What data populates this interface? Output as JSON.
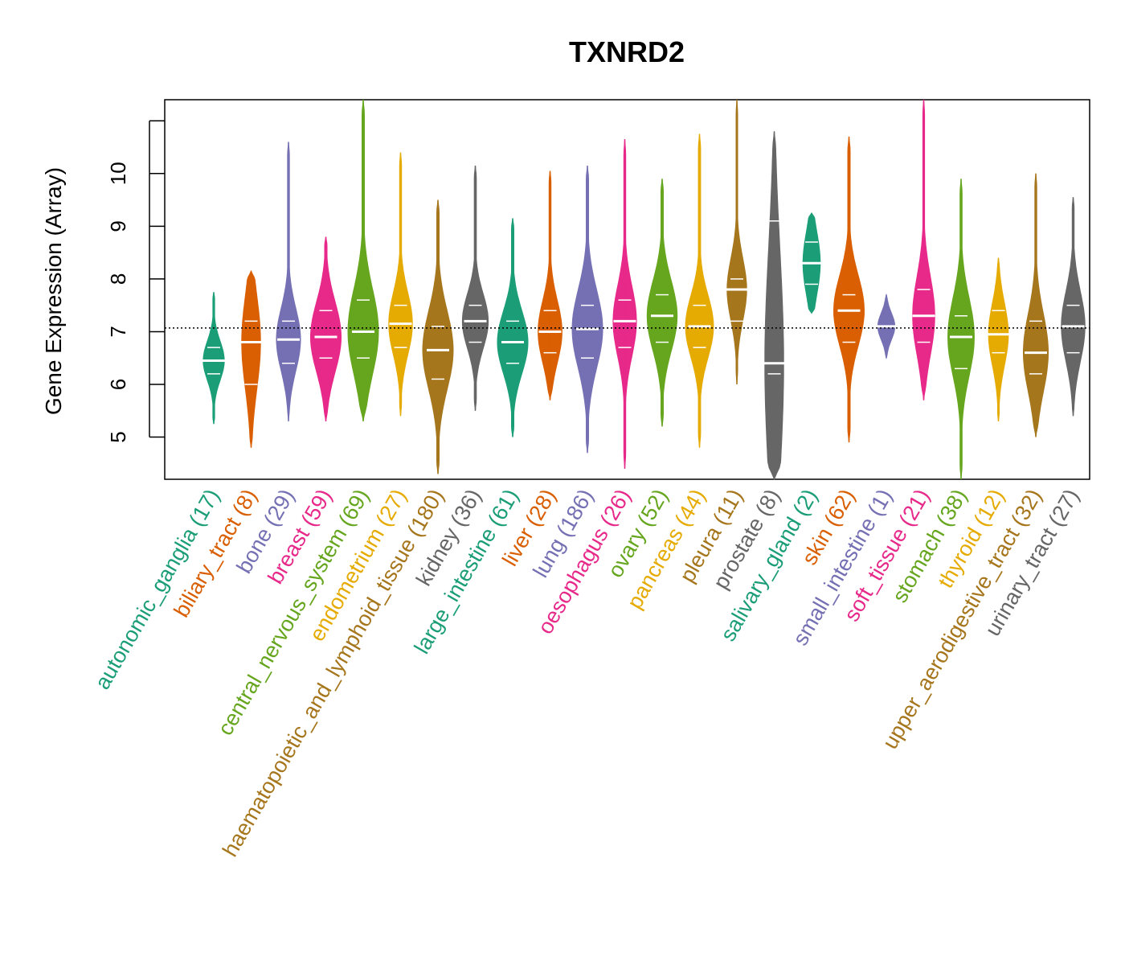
{
  "chart_data": {
    "type": "violin",
    "title": "TXNRD2",
    "ylabel": "Gene Expression (Array)",
    "xlabel": "",
    "ylim": [
      4.2,
      11.4
    ],
    "yticks": [
      5,
      6,
      7,
      8,
      9,
      10
    ],
    "ytick_labels": [
      "5",
      "6",
      "7",
      "8",
      "9",
      "10"
    ],
    "reference_line": 7.07,
    "grid": false,
    "legend": "none",
    "categories": [
      {
        "name": "autonomic_ganglia",
        "n": 17,
        "label": "autonomic_ganglia (17)",
        "color": "#1b9e77",
        "min": 5.25,
        "max": 7.75,
        "median": 6.45,
        "q1": 6.2,
        "q3": 6.7
      },
      {
        "name": "biliary_tract",
        "n": 8,
        "label": "biliary_tract (8)",
        "color": "#d95f02",
        "min": 4.8,
        "max": 8.15,
        "median": 6.8,
        "q1": 6.0,
        "q3": 7.2
      },
      {
        "name": "bone",
        "n": 29,
        "label": "bone (29)",
        "color": "#7570b3",
        "min": 5.3,
        "max": 10.6,
        "median": 6.85,
        "q1": 6.4,
        "q3": 7.2
      },
      {
        "name": "breast",
        "n": 59,
        "label": "breast (59)",
        "color": "#e7298a",
        "min": 5.3,
        "max": 8.8,
        "median": 6.9,
        "q1": 6.5,
        "q3": 7.4
      },
      {
        "name": "central_nervous_system",
        "n": 69,
        "label": "central_nervous_system (69)",
        "color": "#66a61e",
        "min": 5.3,
        "max": 11.4,
        "median": 7.0,
        "q1": 6.5,
        "q3": 7.6
      },
      {
        "name": "endometrium",
        "n": 27,
        "label": "endometrium (27)",
        "color": "#e6ab02",
        "min": 5.4,
        "max": 10.4,
        "median": 7.15,
        "q1": 6.7,
        "q3": 7.5
      },
      {
        "name": "haematopoietic_and_lymphoid_tissue",
        "n": 180,
        "label": "haematopoietic_and_lymphoid_tissue (180)",
        "color": "#a6761d",
        "min": 4.3,
        "max": 9.5,
        "median": 6.65,
        "q1": 6.1,
        "q3": 7.1
      },
      {
        "name": "kidney",
        "n": 36,
        "label": "kidney (36)",
        "color": "#666666",
        "min": 5.5,
        "max": 10.15,
        "median": 7.2,
        "q1": 6.8,
        "q3": 7.5
      },
      {
        "name": "large_intestine",
        "n": 61,
        "label": "large_intestine (61)",
        "color": "#1b9e77",
        "min": 5.0,
        "max": 9.15,
        "median": 6.8,
        "q1": 6.4,
        "q3": 7.2
      },
      {
        "name": "liver",
        "n": 28,
        "label": "liver (28)",
        "color": "#d95f02",
        "min": 5.7,
        "max": 10.05,
        "median": 7.0,
        "q1": 6.6,
        "q3": 7.4
      },
      {
        "name": "lung",
        "n": 186,
        "label": "lung (186)",
        "color": "#7570b3",
        "min": 4.7,
        "max": 10.15,
        "median": 7.05,
        "q1": 6.5,
        "q3": 7.5
      },
      {
        "name": "oesophagus",
        "n": 26,
        "label": "oesophagus (26)",
        "color": "#e7298a",
        "min": 4.4,
        "max": 10.65,
        "median": 7.2,
        "q1": 6.7,
        "q3": 7.6
      },
      {
        "name": "ovary",
        "n": 52,
        "label": "ovary (52)",
        "color": "#66a61e",
        "min": 5.2,
        "max": 9.9,
        "median": 7.3,
        "q1": 6.8,
        "q3": 7.7
      },
      {
        "name": "pancreas",
        "n": 44,
        "label": "pancreas (44)",
        "color": "#e6ab02",
        "min": 4.8,
        "max": 10.75,
        "median": 7.1,
        "q1": 6.7,
        "q3": 7.5
      },
      {
        "name": "pleura",
        "n": 11,
        "label": "pleura (11)",
        "color": "#a6761d",
        "min": 6.0,
        "max": 11.4,
        "median": 7.8,
        "q1": 7.2,
        "q3": 8.0
      },
      {
        "name": "prostate",
        "n": 8,
        "label": "prostate (8)",
        "color": "#666666",
        "min": 4.2,
        "max": 10.8,
        "median": 6.4,
        "q1": 6.2,
        "q3": 9.1
      },
      {
        "name": "salivary_gland",
        "n": 2,
        "label": "salivary_gland (2)",
        "color": "#1b9e77",
        "min": 7.35,
        "max": 9.25,
        "median": 8.3,
        "q1": 7.9,
        "q3": 8.7
      },
      {
        "name": "skin",
        "n": 62,
        "label": "skin (62)",
        "color": "#d95f02",
        "min": 4.9,
        "max": 10.7,
        "median": 7.4,
        "q1": 6.8,
        "q3": 7.7
      },
      {
        "name": "small_intestine",
        "n": 1,
        "label": "small_intestine (1)",
        "color": "#7570b3",
        "min": 6.5,
        "max": 7.7,
        "median": 7.1,
        "q1": 7.1,
        "q3": 7.1
      },
      {
        "name": "soft_tissue",
        "n": 21,
        "label": "soft_tissue (21)",
        "color": "#e7298a",
        "min": 5.7,
        "max": 11.4,
        "median": 7.3,
        "q1": 6.8,
        "q3": 7.8
      },
      {
        "name": "stomach",
        "n": 38,
        "label": "stomach (38)",
        "color": "#66a61e",
        "min": 4.2,
        "max": 9.9,
        "median": 6.9,
        "q1": 6.3,
        "q3": 7.3
      },
      {
        "name": "thyroid",
        "n": 12,
        "label": "thyroid (12)",
        "color": "#e6ab02",
        "min": 5.3,
        "max": 8.4,
        "median": 6.95,
        "q1": 6.6,
        "q3": 7.4
      },
      {
        "name": "upper_aerodigestive_tract",
        "n": 32,
        "label": "upper_aerodigestive_tract (32)",
        "color": "#a6761d",
        "min": 5.0,
        "max": 10.0,
        "median": 6.6,
        "q1": 6.2,
        "q3": 7.2
      },
      {
        "name": "urinary_tract",
        "n": 27,
        "label": "urinary_tract (27)",
        "color": "#666666",
        "min": 5.4,
        "max": 9.55,
        "median": 7.1,
        "q1": 6.6,
        "q3": 7.5
      }
    ]
  }
}
